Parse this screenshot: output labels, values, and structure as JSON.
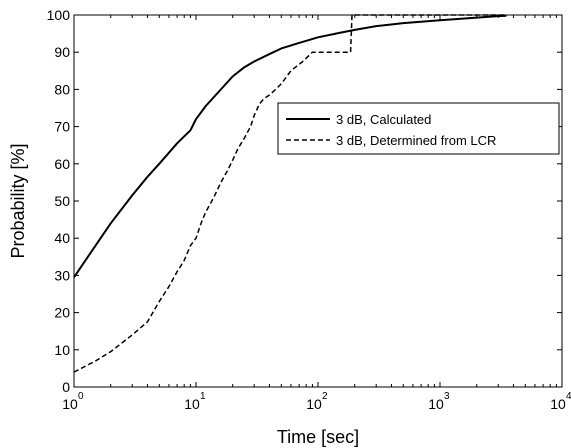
{
  "chart_data": {
    "type": "line",
    "title": "",
    "xlabel": "Time [sec]",
    "ylabel": "Probability [%]",
    "x_scale": "log",
    "xlim": [
      1,
      10000
    ],
    "ylim": [
      0,
      100
    ],
    "x_ticks": [
      {
        "base": "10",
        "exp": "0"
      },
      {
        "base": "10",
        "exp": "1"
      },
      {
        "base": "10",
        "exp": "2"
      },
      {
        "base": "10",
        "exp": "3"
      },
      {
        "base": "10",
        "exp": "4"
      }
    ],
    "y_ticks": [
      "0",
      "10",
      "20",
      "30",
      "40",
      "50",
      "60",
      "70",
      "80",
      "90",
      "100"
    ],
    "grid": false,
    "legend_position": "center-right",
    "series": [
      {
        "name": "3 dB, Calculated",
        "style": "solid",
        "color": "#000000",
        "x": [
          1,
          1.5,
          2,
          3,
          4,
          5,
          7,
          9,
          10,
          12,
          15,
          20,
          25,
          30,
          40,
          50,
          70,
          100,
          150,
          200,
          300,
          500,
          1000,
          2000,
          3000,
          3500
        ],
        "y": [
          29.5,
          38,
          44,
          51.5,
          56.5,
          60,
          65.5,
          69,
          72,
          75.5,
          79,
          83.5,
          86,
          87.5,
          89.5,
          91,
          92.5,
          94,
          95.2,
          96,
          97,
          97.8,
          98.6,
          99.3,
          99.7,
          99.8
        ]
      },
      {
        "name": "3 dB, Determined from LCR",
        "style": "dashed",
        "color": "#000000",
        "x": [
          1,
          1.5,
          2,
          3,
          4,
          5,
          6,
          7,
          8,
          9,
          10,
          11,
          12,
          14,
          16,
          18,
          20,
          22,
          25,
          28,
          30,
          33,
          36,
          40,
          45,
          50,
          60,
          75,
          90,
          120,
          150,
          185,
          190,
          3500
        ],
        "y": [
          4,
          7,
          9.5,
          14,
          17.5,
          23,
          27,
          31,
          34,
          38,
          40,
          44,
          47,
          51,
          55,
          58,
          61,
          64,
          67,
          70,
          73,
          76,
          77.5,
          78.5,
          80,
          81.5,
          85,
          87.5,
          90,
          90,
          90,
          90,
          100,
          100
        ]
      }
    ]
  }
}
